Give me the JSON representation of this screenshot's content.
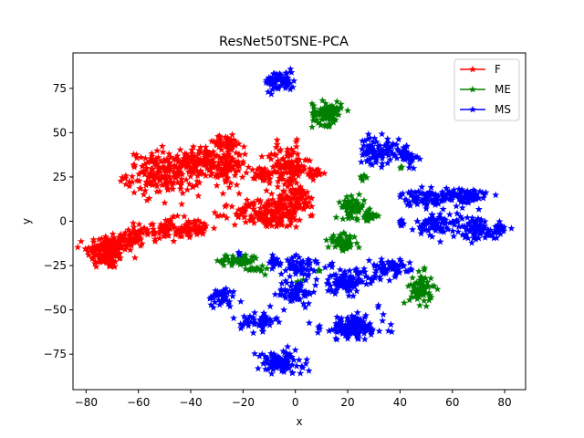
{
  "chart_data": {
    "type": "scatter",
    "title": "ResNet50TSNE-PCA",
    "xlabel": "x",
    "ylabel": "y",
    "xlim": [
      -85,
      88
    ],
    "ylim": [
      -95,
      95
    ],
    "xticks": [
      -80,
      -60,
      -40,
      -20,
      0,
      20,
      40,
      60,
      80
    ],
    "yticks": [
      -75,
      -50,
      -25,
      0,
      25,
      50,
      75
    ],
    "grid": false,
    "legend_position": "top-right",
    "marker": "star",
    "series": [
      {
        "name": "F",
        "color": "#ff0000",
        "clusters": [
          {
            "cx": -72,
            "cy": -17,
            "rx": 7,
            "ry": 9,
            "n": 150
          },
          {
            "cx": -63,
            "cy": -10,
            "rx": 5,
            "ry": 5,
            "n": 50
          },
          {
            "cx": -50,
            "cy": -5,
            "rx": 10,
            "ry": 6,
            "n": 90
          },
          {
            "cx": -38,
            "cy": -4,
            "rx": 6,
            "ry": 4,
            "n": 40
          },
          {
            "cx": -50,
            "cy": 27,
            "rx": 13,
            "ry": 11,
            "n": 200
          },
          {
            "cx": -37,
            "cy": 34,
            "rx": 7,
            "ry": 7,
            "n": 90
          },
          {
            "cx": -26,
            "cy": 30,
            "rx": 6,
            "ry": 9,
            "n": 80
          },
          {
            "cx": -27,
            "cy": 44,
            "rx": 7,
            "ry": 4,
            "n": 50
          },
          {
            "cx": -3,
            "cy": 30,
            "rx": 7,
            "ry": 12,
            "n": 120
          },
          {
            "cx": -12,
            "cy": 27,
            "rx": 3,
            "ry": 5,
            "n": 30
          },
          {
            "cx": 8,
            "cy": 27,
            "rx": 3,
            "ry": 3,
            "n": 20
          },
          {
            "cx": -10,
            "cy": 4,
            "rx": 13,
            "ry": 7,
            "n": 170
          },
          {
            "cx": 0,
            "cy": 12,
            "rx": 7,
            "ry": 6,
            "n": 80
          }
        ]
      },
      {
        "name": "ME",
        "color": "#008000",
        "clusters": [
          {
            "cx": 12,
            "cy": 61,
            "rx": 5,
            "ry": 6,
            "n": 90
          },
          {
            "cx": 22,
            "cy": 8,
            "rx": 4,
            "ry": 5,
            "n": 60
          },
          {
            "cx": 28,
            "cy": 3,
            "rx": 3,
            "ry": 3,
            "n": 25
          },
          {
            "cx": 18,
            "cy": -12,
            "rx": 5,
            "ry": 4,
            "n": 55
          },
          {
            "cx": 26,
            "cy": 25,
            "rx": 1.5,
            "ry": 1.5,
            "n": 8
          },
          {
            "cx": -22,
            "cy": -22,
            "rx": 7,
            "ry": 3,
            "n": 55
          },
          {
            "cx": -15,
            "cy": -27,
            "rx": 3,
            "ry": 2,
            "n": 15
          },
          {
            "cx": 48,
            "cy": -38,
            "rx": 4,
            "ry": 8,
            "n": 70
          },
          {
            "cx": 40,
            "cy": 30,
            "rx": 1,
            "ry": 1,
            "n": 3
          },
          {
            "cx": 9,
            "cy": -28,
            "rx": 1,
            "ry": 1,
            "n": 3
          },
          {
            "cx": 2,
            "cy": -34,
            "rx": 2,
            "ry": 1,
            "n": 5
          }
        ]
      },
      {
        "name": "MS",
        "color": "#0000ff",
        "clusters": [
          {
            "cx": -6,
            "cy": 79,
            "rx": 5,
            "ry": 5,
            "n": 70
          },
          {
            "cx": 31,
            "cy": 40,
            "rx": 6,
            "ry": 7,
            "n": 80
          },
          {
            "cx": 42,
            "cy": 38,
            "rx": 4,
            "ry": 6,
            "n": 45
          },
          {
            "cx": 48,
            "cy": 13,
            "rx": 7,
            "ry": 4,
            "n": 60
          },
          {
            "cx": 63,
            "cy": 14,
            "rx": 10,
            "ry": 5,
            "n": 100
          },
          {
            "cx": 55,
            "cy": -2,
            "rx": 8,
            "ry": 6,
            "n": 80
          },
          {
            "cx": 70,
            "cy": -4,
            "rx": 6,
            "ry": 6,
            "n": 70
          },
          {
            "cx": 78,
            "cy": -5,
            "rx": 3,
            "ry": 3,
            "n": 25
          },
          {
            "cx": 40,
            "cy": -1,
            "rx": 2,
            "ry": 2,
            "n": 10
          },
          {
            "cx": -8,
            "cy": -23,
            "rx": 3,
            "ry": 3,
            "n": 25
          },
          {
            "cx": 2,
            "cy": -25,
            "rx": 5,
            "ry": 5,
            "n": 45
          },
          {
            "cx": 0,
            "cy": -40,
            "rx": 6,
            "ry": 6,
            "n": 60
          },
          {
            "cx": -28,
            "cy": -43,
            "rx": 5,
            "ry": 5,
            "n": 45
          },
          {
            "cx": -14,
            "cy": -56,
            "rx": 6,
            "ry": 5,
            "n": 55
          },
          {
            "cx": -6,
            "cy": -80,
            "rx": 8,
            "ry": 6,
            "n": 110
          },
          {
            "cx": 20,
            "cy": -34,
            "rx": 10,
            "ry": 6,
            "n": 110
          },
          {
            "cx": 36,
            "cy": -26,
            "rx": 7,
            "ry": 4,
            "n": 60
          },
          {
            "cx": 22,
            "cy": -60,
            "rx": 11,
            "ry": 6,
            "n": 140
          },
          {
            "cx": -21,
            "cy": -18,
            "rx": 1,
            "ry": 1,
            "n": 3
          },
          {
            "cx": 8,
            "cy": -23,
            "rx": 1,
            "ry": 1,
            "n": 3
          },
          {
            "cx": 14,
            "cy": -25,
            "rx": 1,
            "ry": 1,
            "n": 3
          },
          {
            "cx": 32,
            "cy": -48,
            "rx": 1,
            "ry": 1,
            "n": 2
          }
        ]
      }
    ]
  }
}
